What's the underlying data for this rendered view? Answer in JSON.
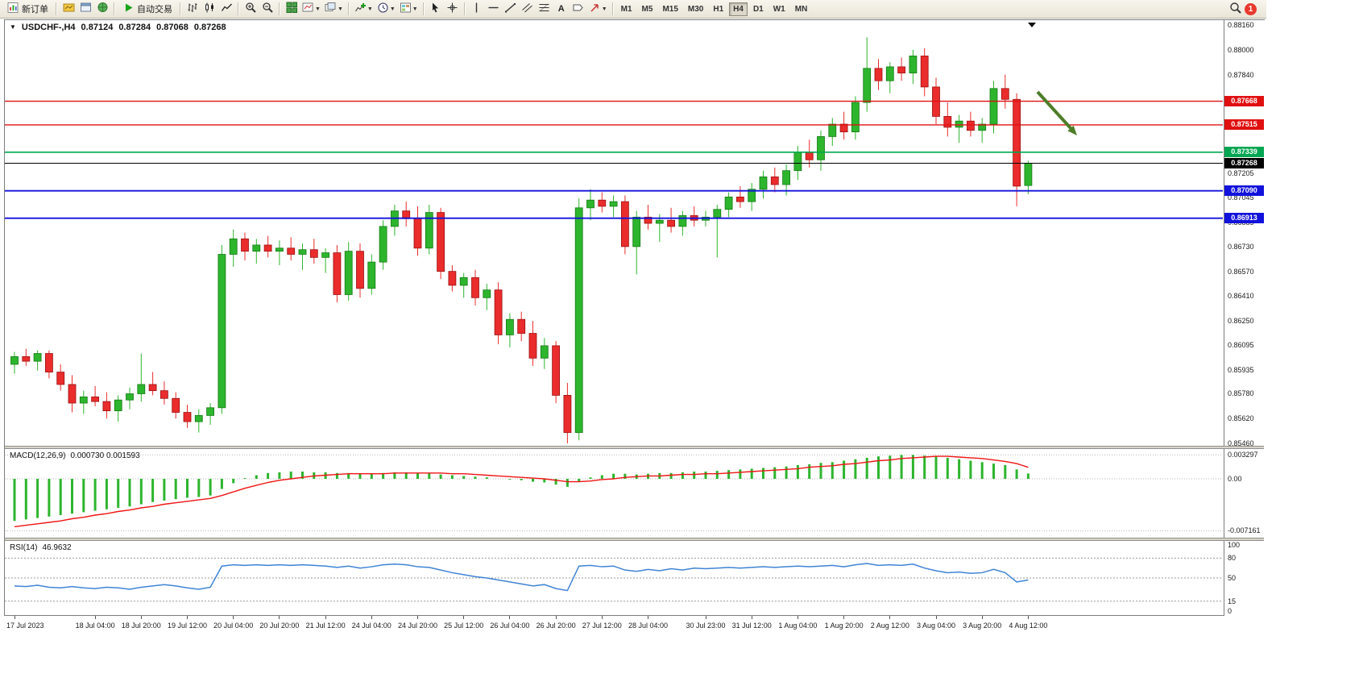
{
  "toolbar": {
    "new_order": "新订单",
    "auto_trading": "自动交易",
    "text_tool": "A",
    "timeframes": [
      "M1",
      "M5",
      "M15",
      "M30",
      "H1",
      "H4",
      "D1",
      "W1",
      "MN"
    ],
    "active_timeframe": "H4",
    "notification_count": "1"
  },
  "chart": {
    "symbol_period": "USDCHF-,H4",
    "ohlc": {
      "open": "0.87124",
      "high": "0.87284",
      "low": "0.87068",
      "close": "0.87268"
    },
    "price_axis_labels": [
      "0.88160",
      "0.88000",
      "0.87840",
      "0.87205",
      "0.87045",
      "0.86885",
      "0.86730",
      "0.86570",
      "0.86410",
      "0.86250",
      "0.86095",
      "0.85935",
      "0.85780",
      "0.85620",
      "0.85460"
    ],
    "levels": [
      {
        "label": "0.87668",
        "price": 0.87668,
        "color": "#e01010",
        "width": 1.4
      },
      {
        "label": "0.87515",
        "price": 0.87515,
        "color": "#e01010",
        "width": 1.4
      },
      {
        "label": "0.87339",
        "price": 0.87339,
        "color": "#00a651",
        "width": 1.6
      },
      {
        "label": "0.87268",
        "price": 0.87268,
        "color": "#000000",
        "width": 1
      },
      {
        "label": "0.87090",
        "price": 0.8709,
        "color": "#1212dd",
        "width": 1.8
      },
      {
        "label": "0.86913",
        "price": 0.86913,
        "color": "#1212dd",
        "width": 1.8
      }
    ]
  },
  "macd": {
    "label": "MACD(12,26,9)",
    "values_text": "0.000730 0.001593",
    "axis_labels": [
      "0.003297",
      "0.00",
      "-0.007161"
    ]
  },
  "rsi": {
    "label": "RSI(14)",
    "value_text": "46.9632",
    "axis_labels": [
      "100",
      "80",
      "50",
      "15",
      "0"
    ],
    "level_lines": [
      80,
      50,
      15
    ]
  },
  "time_axis": {
    "ticks": [
      {
        "label": "17 Jul 2023",
        "index": 0
      },
      {
        "label": "18 Jul 04:00",
        "index": 7
      },
      {
        "label": "18 Jul 20:00",
        "index": 11
      },
      {
        "label": "19 Jul 12:00",
        "index": 15
      },
      {
        "label": "20 Jul 04:00",
        "index": 19
      },
      {
        "label": "20 Jul 20:00",
        "index": 23
      },
      {
        "label": "21 Jul 12:00",
        "index": 27
      },
      {
        "label": "24 Jul 04:00",
        "index": 31
      },
      {
        "label": "24 Jul 20:00",
        "index": 35
      },
      {
        "label": "25 Jul 12:00",
        "index": 39
      },
      {
        "label": "26 Jul 04:00",
        "index": 43
      },
      {
        "label": "26 Jul 20:00",
        "index": 47
      },
      {
        "label": "27 Jul 12:00",
        "index": 51
      },
      {
        "label": "28 Jul 04:00",
        "index": 55
      },
      {
        "label": "30 Jul 23:00",
        "index": 60
      },
      {
        "label": "31 Jul 12:00",
        "index": 64
      },
      {
        "label": "1 Aug 04:00",
        "index": 68
      },
      {
        "label": "1 Aug 20:00",
        "index": 72
      },
      {
        "label": "2 Aug 12:00",
        "index": 76
      },
      {
        "label": "3 Aug 04:00",
        "index": 80
      },
      {
        "label": "3 Aug 20:00",
        "index": 84
      },
      {
        "label": "4 Aug 12:00",
        "index": 88
      }
    ]
  },
  "colors": {
    "bull": "#2db52d",
    "bull_stroke": "#157a15",
    "bear": "#ea2c2c",
    "bear_stroke": "#9c1010",
    "macd_hist": "#2db52d",
    "macd_signal": "#f01414",
    "rsi_line": "#3f84d6",
    "arrow": "#4e7d28",
    "grid_dotted": "#b8b8b8"
  },
  "chart_data": {
    "type": "candlestick",
    "symbol": "USDCHF",
    "timeframe": "H4",
    "price_range": [
      0.8546,
      0.8816
    ],
    "candles": [
      [
        0.8597,
        0.8605,
        0.8591,
        0.8602
      ],
      [
        0.8602,
        0.8607,
        0.8596,
        0.8599
      ],
      [
        0.8599,
        0.8606,
        0.8593,
        0.8604
      ],
      [
        0.8604,
        0.8606,
        0.8588,
        0.8592
      ],
      [
        0.8592,
        0.8597,
        0.858,
        0.8584
      ],
      [
        0.8584,
        0.859,
        0.8566,
        0.8572
      ],
      [
        0.8572,
        0.858,
        0.8565,
        0.8576
      ],
      [
        0.8576,
        0.8583,
        0.857,
        0.8573
      ],
      [
        0.8573,
        0.8579,
        0.8562,
        0.8567
      ],
      [
        0.8567,
        0.8577,
        0.856,
        0.8574
      ],
      [
        0.8574,
        0.8582,
        0.8568,
        0.8578
      ],
      [
        0.8578,
        0.8604,
        0.8573,
        0.8584
      ],
      [
        0.8584,
        0.8592,
        0.8577,
        0.858
      ],
      [
        0.858,
        0.8586,
        0.8571,
        0.8575
      ],
      [
        0.8575,
        0.8579,
        0.8562,
        0.8566
      ],
      [
        0.8566,
        0.8571,
        0.8556,
        0.856
      ],
      [
        0.856,
        0.8568,
        0.8553,
        0.8564
      ],
      [
        0.8564,
        0.8572,
        0.8558,
        0.8569
      ],
      [
        0.8569,
        0.8674,
        0.8565,
        0.8668
      ],
      [
        0.8668,
        0.8684,
        0.866,
        0.8678
      ],
      [
        0.8678,
        0.8682,
        0.8664,
        0.867
      ],
      [
        0.867,
        0.8678,
        0.8662,
        0.8674
      ],
      [
        0.8674,
        0.868,
        0.8666,
        0.867
      ],
      [
        0.867,
        0.8677,
        0.8661,
        0.8672
      ],
      [
        0.8672,
        0.8679,
        0.8664,
        0.8668
      ],
      [
        0.8668,
        0.8675,
        0.8658,
        0.8671
      ],
      [
        0.8671,
        0.8678,
        0.8662,
        0.8666
      ],
      [
        0.8666,
        0.8672,
        0.8656,
        0.8669
      ],
      [
        0.8669,
        0.8674,
        0.8637,
        0.8642
      ],
      [
        0.8642,
        0.8676,
        0.8638,
        0.867
      ],
      [
        0.867,
        0.8675,
        0.864,
        0.8646
      ],
      [
        0.8646,
        0.8668,
        0.8642,
        0.8663
      ],
      [
        0.8663,
        0.869,
        0.8658,
        0.8686
      ],
      [
        0.8686,
        0.87,
        0.868,
        0.8696
      ],
      [
        0.8696,
        0.8702,
        0.8686,
        0.8691
      ],
      [
        0.8691,
        0.8699,
        0.8667,
        0.8672
      ],
      [
        0.8672,
        0.87,
        0.8668,
        0.8695
      ],
      [
        0.8695,
        0.8698,
        0.8652,
        0.8657
      ],
      [
        0.8657,
        0.8661,
        0.8644,
        0.8648
      ],
      [
        0.8648,
        0.8656,
        0.864,
        0.8653
      ],
      [
        0.8653,
        0.8658,
        0.8635,
        0.864
      ],
      [
        0.864,
        0.8649,
        0.8632,
        0.8645
      ],
      [
        0.8645,
        0.865,
        0.861,
        0.8616
      ],
      [
        0.8616,
        0.863,
        0.8608,
        0.8626
      ],
      [
        0.8626,
        0.8631,
        0.8612,
        0.8617
      ],
      [
        0.8617,
        0.8625,
        0.8596,
        0.8601
      ],
      [
        0.8601,
        0.8614,
        0.8594,
        0.8609
      ],
      [
        0.8609,
        0.8612,
        0.8572,
        0.8577
      ],
      [
        0.8577,
        0.8585,
        0.8546,
        0.8553
      ],
      [
        0.8553,
        0.8704,
        0.8548,
        0.8698
      ],
      [
        0.8698,
        0.871,
        0.869,
        0.8703
      ],
      [
        0.8703,
        0.8708,
        0.8695,
        0.8699
      ],
      [
        0.8699,
        0.8706,
        0.8692,
        0.8702
      ],
      [
        0.8702,
        0.8706,
        0.8668,
        0.8673
      ],
      [
        0.8673,
        0.8696,
        0.8655,
        0.8692
      ],
      [
        0.8692,
        0.87,
        0.8684,
        0.8688
      ],
      [
        0.8688,
        0.8694,
        0.8676,
        0.869
      ],
      [
        0.869,
        0.8698,
        0.8682,
        0.8686
      ],
      [
        0.8686,
        0.8696,
        0.868,
        0.8693
      ],
      [
        0.8693,
        0.8699,
        0.8686,
        0.869
      ],
      [
        0.869,
        0.8696,
        0.8686,
        0.8692
      ],
      [
        0.8692,
        0.87,
        0.8666,
        0.8697
      ],
      [
        0.8697,
        0.8708,
        0.8692,
        0.8705
      ],
      [
        0.8705,
        0.8712,
        0.8698,
        0.8702
      ],
      [
        0.8702,
        0.8714,
        0.8696,
        0.871
      ],
      [
        0.871,
        0.8722,
        0.8704,
        0.8718
      ],
      [
        0.8718,
        0.8724,
        0.8708,
        0.8713
      ],
      [
        0.8713,
        0.8726,
        0.8706,
        0.8722
      ],
      [
        0.8722,
        0.8738,
        0.8716,
        0.8734
      ],
      [
        0.8734,
        0.8742,
        0.8724,
        0.8729
      ],
      [
        0.8729,
        0.8748,
        0.8722,
        0.8744
      ],
      [
        0.8744,
        0.8756,
        0.8738,
        0.8752
      ],
      [
        0.8752,
        0.876,
        0.8742,
        0.8747
      ],
      [
        0.8747,
        0.877,
        0.8742,
        0.8766
      ],
      [
        0.8766,
        0.8808,
        0.876,
        0.8788
      ],
      [
        0.8788,
        0.8794,
        0.8774,
        0.878
      ],
      [
        0.878,
        0.8792,
        0.8772,
        0.8789
      ],
      [
        0.8789,
        0.8795,
        0.878,
        0.8785
      ],
      [
        0.8785,
        0.88,
        0.8778,
        0.8796
      ],
      [
        0.8796,
        0.8801,
        0.877,
        0.8776
      ],
      [
        0.8776,
        0.8782,
        0.8752,
        0.8757
      ],
      [
        0.8757,
        0.8766,
        0.8744,
        0.875
      ],
      [
        0.875,
        0.8758,
        0.874,
        0.8754
      ],
      [
        0.8754,
        0.876,
        0.8744,
        0.8748
      ],
      [
        0.8748,
        0.8756,
        0.874,
        0.8752
      ],
      [
        0.8752,
        0.878,
        0.8746,
        0.8775
      ],
      [
        0.8775,
        0.8784,
        0.8762,
        0.8768
      ],
      [
        0.8768,
        0.8772,
        0.8699,
        0.8712
      ],
      [
        0.87124,
        0.87284,
        0.87068,
        0.87268
      ]
    ],
    "macd": {
      "range": [
        -0.007161,
        0.003297
      ],
      "histogram": [
        -0.0058,
        -0.0056,
        -0.0054,
        -0.0052,
        -0.005,
        -0.0048,
        -0.0046,
        -0.0044,
        -0.0042,
        -0.004,
        -0.0038,
        -0.0035,
        -0.0032,
        -0.003,
        -0.0028,
        -0.0026,
        -0.0025,
        -0.0023,
        -0.0014,
        -0.0006,
        0.0001,
        0.0005,
        0.0008,
        0.0009,
        0.001,
        0.001,
        0.0009,
        0.0009,
        0.0008,
        0.0008,
        0.0007,
        0.0007,
        0.0008,
        0.0009,
        0.0009,
        0.0008,
        0.0008,
        0.0006,
        0.0005,
        0.0004,
        0.0003,
        0.0002,
        0.0,
        -0.0001,
        -0.0002,
        -0.0004,
        -0.0005,
        -0.0008,
        -0.0011,
        -0.0004,
        0.0002,
        0.0005,
        0.0007,
        0.0007,
        0.0006,
        0.0007,
        0.0008,
        0.0008,
        0.0009,
        0.001,
        0.001,
        0.0011,
        0.0012,
        0.0013,
        0.0014,
        0.0015,
        0.0016,
        0.0017,
        0.0019,
        0.002,
        0.0022,
        0.0023,
        0.0025,
        0.0027,
        0.0029,
        0.0031,
        0.0032,
        0.0033,
        0.0033,
        0.0032,
        0.0031,
        0.0029,
        0.0027,
        0.0025,
        0.0023,
        0.0021,
        0.0019,
        0.0013,
        0.00073
      ],
      "signal": [
        -0.0066,
        -0.0064,
        -0.0062,
        -0.006,
        -0.0058,
        -0.0055,
        -0.0053,
        -0.005,
        -0.0048,
        -0.0045,
        -0.0043,
        -0.004,
        -0.0038,
        -0.0035,
        -0.0033,
        -0.0031,
        -0.0029,
        -0.0027,
        -0.0023,
        -0.0018,
        -0.0013,
        -0.0009,
        -0.0005,
        -0.0002,
        0.0,
        0.0002,
        0.0004,
        0.0005,
        0.0006,
        0.0007,
        0.0007,
        0.0007,
        0.0007,
        0.0008,
        0.0008,
        0.0008,
        0.0008,
        0.0008,
        0.0007,
        0.0007,
        0.0006,
        0.0005,
        0.0004,
        0.0003,
        0.0002,
        0.0001,
        0.0,
        -0.0002,
        -0.0004,
        -0.0004,
        -0.0003,
        -0.0001,
        0.0,
        0.0002,
        0.0003,
        0.0004,
        0.0004,
        0.0005,
        0.0006,
        0.0006,
        0.0007,
        0.0007,
        0.0008,
        0.0009,
        0.001,
        0.0011,
        0.0012,
        0.0013,
        0.0014,
        0.0016,
        0.0017,
        0.0018,
        0.002,
        0.0021,
        0.0023,
        0.0025,
        0.0026,
        0.0028,
        0.0029,
        0.003,
        0.0031,
        0.0031,
        0.003,
        0.0029,
        0.0028,
        0.0026,
        0.0024,
        0.0021,
        0.001593
      ]
    },
    "rsi": {
      "range": [
        0,
        100
      ],
      "values": [
        38,
        37,
        39,
        36,
        35,
        37,
        35,
        34,
        36,
        35,
        33,
        36,
        38,
        40,
        38,
        35,
        33,
        36,
        68,
        70,
        69,
        70,
        69,
        70,
        69,
        70,
        69,
        68,
        66,
        68,
        65,
        67,
        70,
        71,
        70,
        67,
        66,
        62,
        58,
        55,
        52,
        50,
        47,
        44,
        41,
        38,
        40,
        34,
        31,
        68,
        69,
        67,
        68,
        62,
        60,
        63,
        61,
        64,
        62,
        65,
        64,
        65,
        66,
        65,
        66,
        67,
        66,
        67,
        68,
        67,
        68,
        69,
        67,
        70,
        72,
        69,
        70,
        69,
        71,
        65,
        61,
        58,
        59,
        57,
        58,
        63,
        58,
        44,
        46.9632
      ]
    }
  }
}
